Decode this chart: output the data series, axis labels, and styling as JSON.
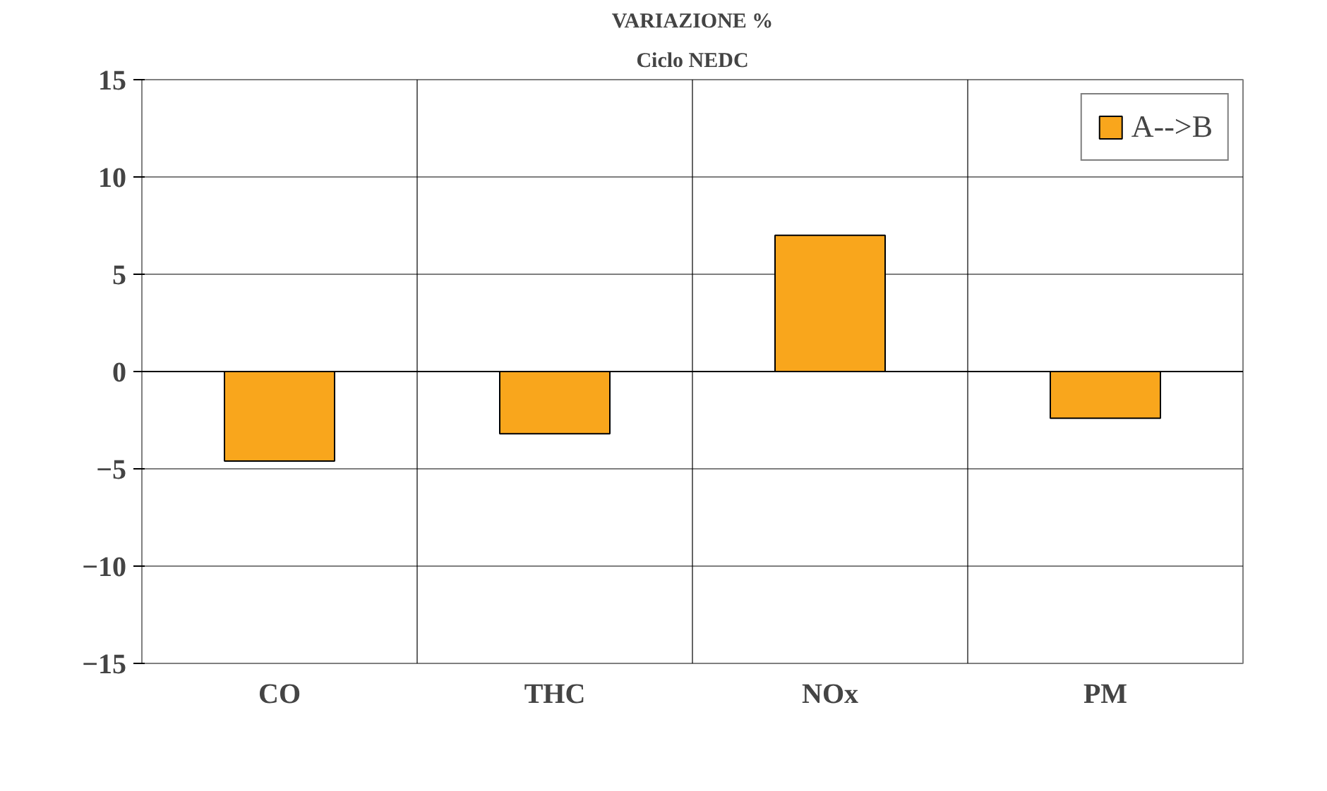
{
  "chart_data": {
    "type": "bar",
    "title": "VARIAZIONE %",
    "subtitle": "Ciclo NEDC",
    "categories": [
      "CO",
      "THC",
      "NOx",
      "PM"
    ],
    "series": [
      {
        "name": "A-->B",
        "color": "#f9a61c",
        "values": [
          -4.6,
          -3.2,
          7.0,
          -2.4
        ]
      }
    ],
    "ylim": [
      -15,
      15
    ],
    "yticks": [
      -15,
      -10,
      -5,
      0,
      5,
      10,
      15
    ],
    "grid": true,
    "legend": "top right"
  }
}
